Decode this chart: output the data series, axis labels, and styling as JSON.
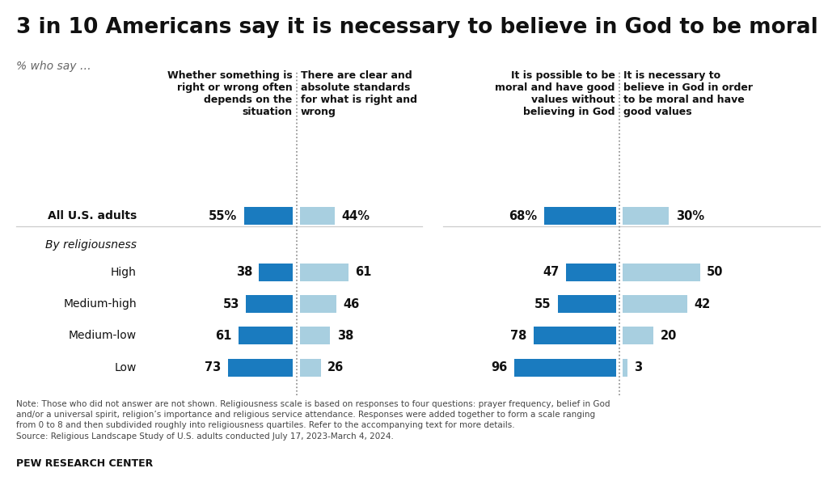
{
  "title": "3 in 10 Americans say it is necessary to believe in God to be moral",
  "subtitle": "% who say …",
  "col_headers": [
    "Whether something is\nright or wrong often\ndepends on the\nsituation",
    "There are clear and\nabsolute standards\nfor what is right and\nwrong",
    "It is possible to be\nmoral and have good\nvalues without\nbelieving in God",
    "It is necessary to\nbelieve in God in order\nto be moral and have\ngood values"
  ],
  "col_header_align": [
    "right",
    "left",
    "right",
    "left"
  ],
  "row_labels": [
    "All U.S. adults",
    "By religiousness",
    "High",
    "Medium-high",
    "Medium-low",
    "Low"
  ],
  "row_label_bold": [
    true,
    false,
    false,
    false,
    false,
    false
  ],
  "row_label_italic": [
    false,
    true,
    false,
    false,
    false,
    false
  ],
  "values": [
    [
      55,
      44,
      68,
      30
    ],
    [
      null,
      null,
      null,
      null
    ],
    [
      38,
      61,
      47,
      50
    ],
    [
      53,
      46,
      55,
      42
    ],
    [
      61,
      38,
      78,
      20
    ],
    [
      73,
      26,
      96,
      3
    ]
  ],
  "col_num_side": [
    "left",
    "right",
    "left",
    "right"
  ],
  "col_colors": [
    "#1a7bbf",
    "#a8cfe0",
    "#1a7bbf",
    "#a8cfe0"
  ],
  "note_lines": [
    "Note: Those who did not answer are not shown. Religiousness scale is based on responses to four questions: prayer frequency, belief in God",
    "and/or a universal spirit, religion’s importance and religious service attendance. Responses were added together to form a scale ranging",
    "from 0 to 8 and then subdivided roughly into religiousness quartiles. Refer to the accompanying text for more details.",
    "Source: Religious Landscape Study of U.S. adults conducted July 17, 2023-March 4, 2024."
  ],
  "source_label": "PEW RESEARCH CENTER",
  "background_color": "#ffffff",
  "title_fontsize": 19,
  "subtitle_fontsize": 10,
  "col_header_fontsize": 9,
  "row_label_fontsize": 10,
  "bar_label_fontsize": 10.5,
  "note_fontsize": 7.5,
  "source_fontsize": 9
}
